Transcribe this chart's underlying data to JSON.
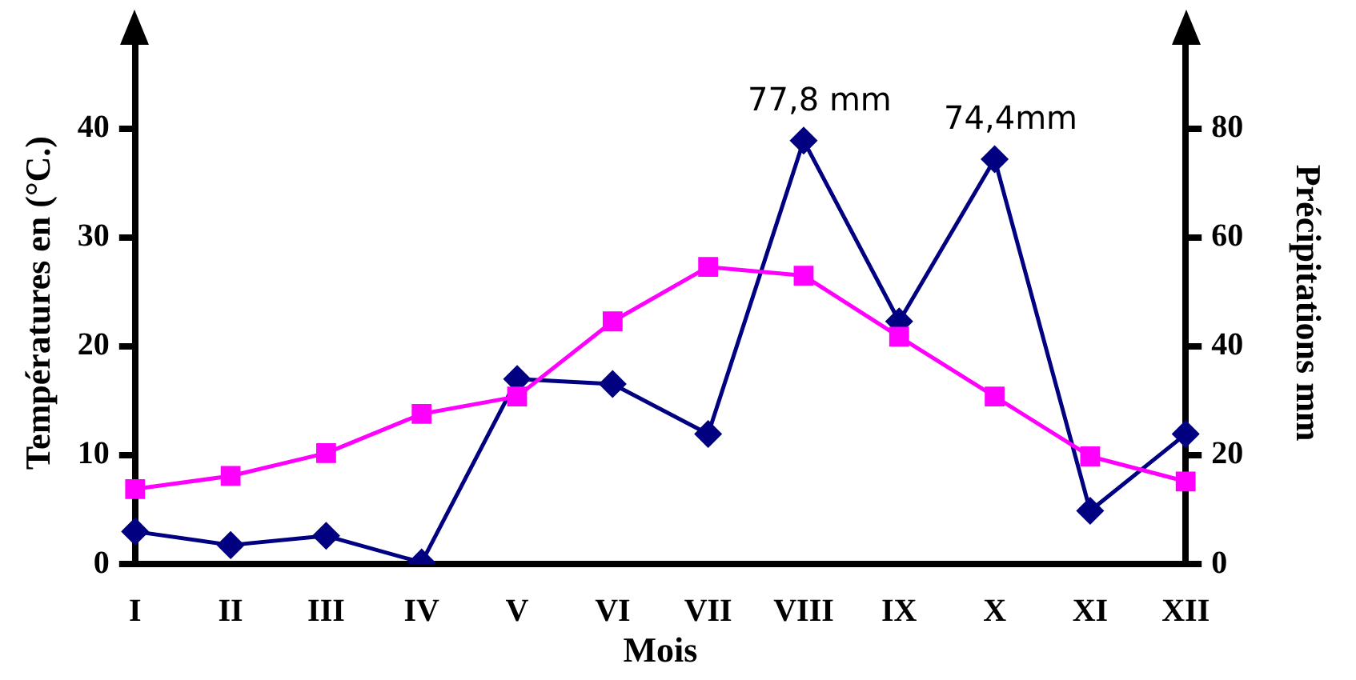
{
  "chart_data": {
    "type": "line",
    "xlabel": "Mois",
    "ylabel": "Températures en (°C.)",
    "y2label": "Précipitations mm",
    "categories": [
      "I",
      "II",
      "III",
      "IV",
      "V",
      "VI",
      "VII",
      "VIII",
      "IX",
      "X",
      "XI",
      "XII"
    ],
    "series": [
      {
        "color": "#ff00ff",
        "marker": "square",
        "values": [
          6.9,
          8.1,
          10.2,
          13.8,
          15.4,
          22.3,
          27.3,
          26.5,
          20.9,
          15.4,
          9.9,
          7.6
        ]
      },
      {
        "color": "#000080",
        "marker": "diamond",
        "axis": "y2",
        "values": [
          6.0,
          3.5,
          5.2,
          0.3,
          34,
          33.1,
          23.9,
          77.8,
          44.6,
          74.4,
          9.8,
          23.9
        ]
      }
    ],
    "ylim": [
      0,
      48
    ],
    "yticks": [
      0,
      10,
      20,
      30,
      40
    ],
    "y2lim": [
      0,
      96
    ],
    "y2ticks": [
      0,
      20,
      40,
      60,
      80
    ],
    "grid": false,
    "legend": false,
    "annotations": [
      {
        "text": "77,8 mm",
        "x": "VIII",
        "y": 38.9
      },
      {
        "text": "74,4mm",
        "x": "X",
        "y": 37.2
      }
    ]
  }
}
